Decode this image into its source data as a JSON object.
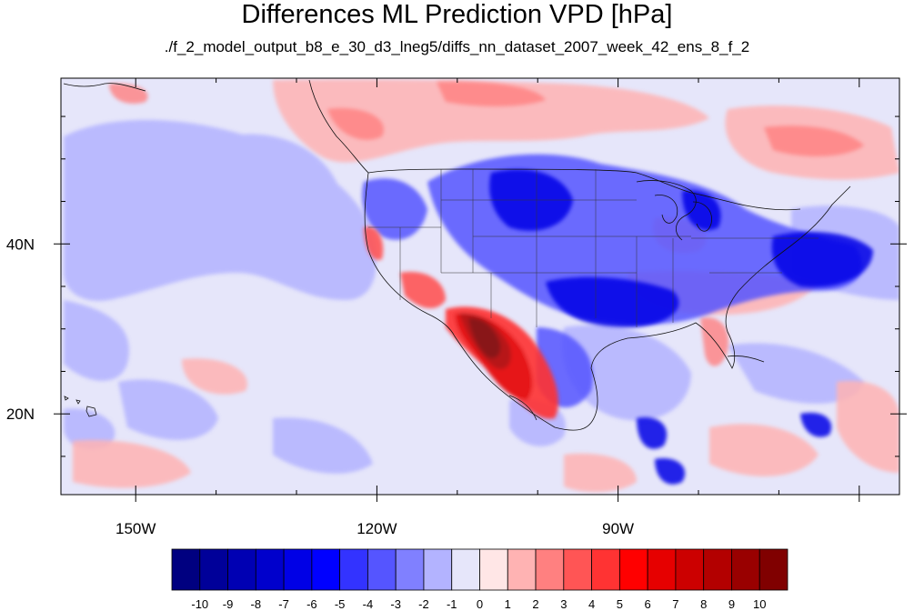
{
  "map": {
    "title": "Differences ML Prediction VPD [hPa]",
    "subtitle": "./f_2_model_output_b8_e_30_d3_lneg5/diffs_nn_dataset_2007_week_42_ens_8_f_2",
    "lon_labels": [
      "150W",
      "120W",
      "90W"
    ],
    "lat_labels": [
      "40N",
      "20N"
    ],
    "lon_range": [
      -159.3,
      -55
    ],
    "lat_range": [
      10.5,
      59.5
    ]
  },
  "colorbar": {
    "labels": [
      "-10",
      "-9",
      "-8",
      "-7",
      "-6",
      "-5",
      "-4",
      "-3",
      "-2",
      "-1",
      "0",
      "1",
      "2",
      "3",
      "4",
      "5",
      "6",
      "7",
      "8",
      "9",
      "10"
    ],
    "colors": [
      "#000080",
      "#000099",
      "#0000b3",
      "#0000cc",
      "#0000e6",
      "#0000ff",
      "#3333ff",
      "#5555ff",
      "#8080ff",
      "#b3b3ff",
      "#e6e6fa",
      "#ffe6e6",
      "#ffb3b3",
      "#ff8080",
      "#ff5555",
      "#ff3333",
      "#ff0000",
      "#e60000",
      "#cc0000",
      "#b30000",
      "#990000",
      "#800000"
    ]
  }
}
